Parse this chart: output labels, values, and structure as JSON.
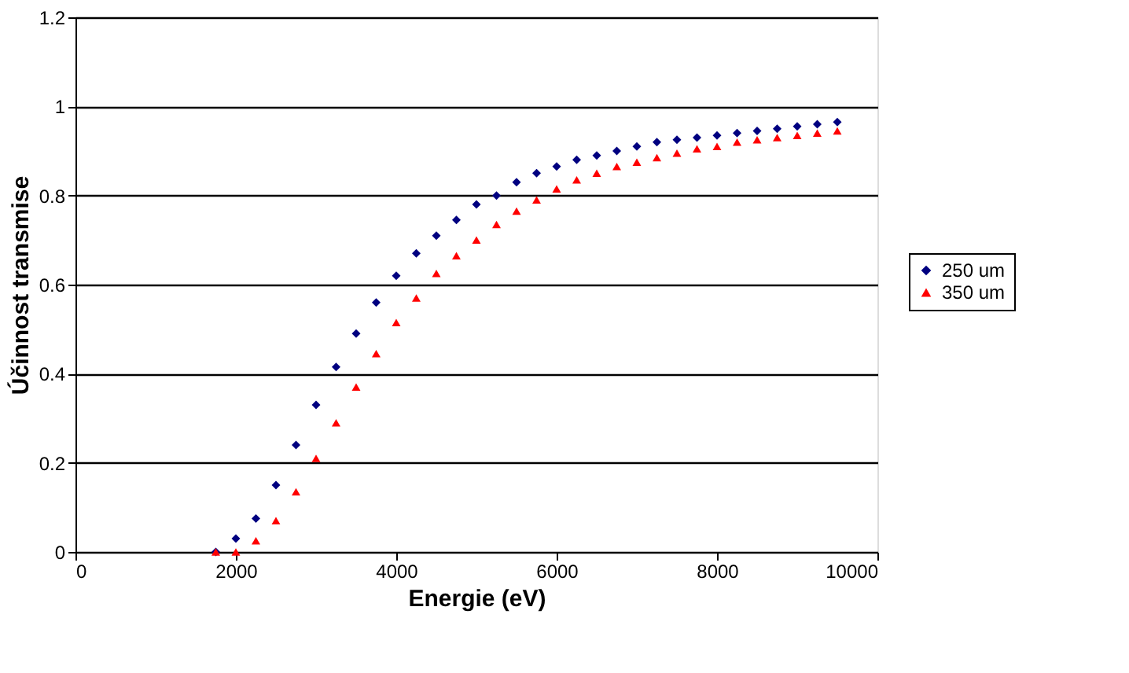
{
  "chart_data": {
    "type": "scatter",
    "xlabel": "Energie (eV)",
    "ylabel": "Účinnost transmise",
    "x": [
      1750,
      2000,
      2250,
      2500,
      2750,
      3000,
      3250,
      3500,
      3750,
      4000,
      4250,
      4500,
      4750,
      5000,
      5250,
      5500,
      5750,
      6000,
      6250,
      6500,
      6750,
      7000,
      7250,
      7500,
      7750,
      8000,
      8250,
      8500,
      8750,
      9000,
      9250,
      9500
    ],
    "series": [
      {
        "name": "250 um",
        "color": "#000080",
        "marker": "diamond",
        "values": [
          0,
          0.03,
          0.075,
          0.15,
          0.24,
          0.33,
          0.415,
          0.49,
          0.56,
          0.62,
          0.67,
          0.71,
          0.745,
          0.78,
          0.8,
          0.83,
          0.85,
          0.865,
          0.88,
          0.89,
          0.9,
          0.91,
          0.92,
          0.925,
          0.93,
          0.935,
          0.94,
          0.945,
          0.95,
          0.955,
          0.96,
          0.965
        ]
      },
      {
        "name": "350 um",
        "color": "#ff0000",
        "marker": "triangle",
        "values": [
          0,
          0,
          0.025,
          0.07,
          0.135,
          0.21,
          0.29,
          0.37,
          0.445,
          0.515,
          0.57,
          0.625,
          0.665,
          0.7,
          0.735,
          0.765,
          0.79,
          0.815,
          0.835,
          0.85,
          0.865,
          0.875,
          0.885,
          0.895,
          0.905,
          0.91,
          0.92,
          0.925,
          0.93,
          0.935,
          0.94,
          0.945
        ]
      }
    ],
    "xlim": [
      0,
      10000
    ],
    "xticks": [
      0,
      2000,
      4000,
      6000,
      8000,
      10000
    ],
    "ylim": [
      0,
      1.2
    ],
    "yticks": [
      0,
      0.2,
      0.4,
      0.6,
      0.8,
      1,
      1.2
    ],
    "grid": "y",
    "legend": "right"
  }
}
